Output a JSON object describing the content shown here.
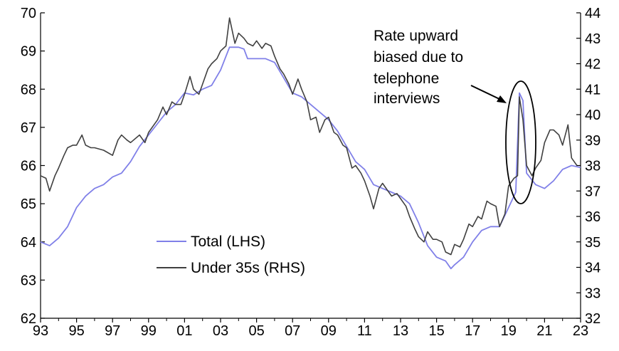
{
  "chart_data": {
    "type": "line",
    "title": "",
    "xlabel": "",
    "ylabel_left": "",
    "ylabel_right": "",
    "x_ticks": [
      "93",
      "95",
      "97",
      "99",
      "01",
      "03",
      "05",
      "07",
      "09",
      "11",
      "13",
      "15",
      "17",
      "19",
      "21",
      "23"
    ],
    "x_tick_years": [
      1993,
      1995,
      1997,
      1999,
      2001,
      2003,
      2005,
      2007,
      2009,
      2011,
      2013,
      2015,
      2017,
      2019,
      2021,
      2023
    ],
    "xlim": [
      1993,
      2023
    ],
    "ylim_left": [
      62,
      70
    ],
    "ylim_right": [
      32,
      44
    ],
    "y_ticks_left": [
      "62",
      "63",
      "64",
      "65",
      "66",
      "67",
      "68",
      "69",
      "70"
    ],
    "y_ticks_right": [
      "32",
      "33",
      "34",
      "35",
      "36",
      "37",
      "38",
      "39",
      "40",
      "41",
      "42",
      "43",
      "44"
    ],
    "grid": false,
    "legend_position": "bottom-left",
    "series": [
      {
        "name": "Total (LHS)",
        "axis": "left",
        "color": "#8080e8",
        "points": [
          [
            1993.0,
            64.0
          ],
          [
            1993.5,
            63.9
          ],
          [
            1994.0,
            64.1
          ],
          [
            1994.5,
            64.4
          ],
          [
            1995.0,
            64.9
          ],
          [
            1995.5,
            65.2
          ],
          [
            1996.0,
            65.4
          ],
          [
            1996.5,
            65.5
          ],
          [
            1997.0,
            65.7
          ],
          [
            1997.5,
            65.8
          ],
          [
            1998.0,
            66.1
          ],
          [
            1998.5,
            66.5
          ],
          [
            1999.0,
            66.8
          ],
          [
            1999.5,
            67.1
          ],
          [
            2000.0,
            67.4
          ],
          [
            2000.5,
            67.6
          ],
          [
            2001.0,
            67.9
          ],
          [
            2001.5,
            67.85
          ],
          [
            2002.0,
            68.0
          ],
          [
            2002.5,
            68.1
          ],
          [
            2003.0,
            68.5
          ],
          [
            2003.5,
            69.1
          ],
          [
            2004.0,
            69.1
          ],
          [
            2004.3,
            69.05
          ],
          [
            2004.5,
            68.8
          ],
          [
            2005.0,
            68.8
          ],
          [
            2005.5,
            68.8
          ],
          [
            2006.0,
            68.7
          ],
          [
            2006.5,
            68.3
          ],
          [
            2007.0,
            67.9
          ],
          [
            2007.5,
            67.8
          ],
          [
            2008.0,
            67.6
          ],
          [
            2008.5,
            67.4
          ],
          [
            2009.0,
            67.2
          ],
          [
            2009.5,
            66.9
          ],
          [
            2010.0,
            66.5
          ],
          [
            2010.5,
            66.1
          ],
          [
            2011.0,
            65.9
          ],
          [
            2011.5,
            65.5
          ],
          [
            2012.0,
            65.4
          ],
          [
            2012.5,
            65.3
          ],
          [
            2013.0,
            65.2
          ],
          [
            2013.5,
            65.0
          ],
          [
            2014.0,
            64.5
          ],
          [
            2014.5,
            63.9
          ],
          [
            2015.0,
            63.6
          ],
          [
            2015.5,
            63.5
          ],
          [
            2015.8,
            63.3
          ],
          [
            2016.0,
            63.4
          ],
          [
            2016.5,
            63.6
          ],
          [
            2017.0,
            64.0
          ],
          [
            2017.5,
            64.3
          ],
          [
            2018.0,
            64.4
          ],
          [
            2018.5,
            64.4
          ],
          [
            2019.0,
            64.9
          ],
          [
            2019.4,
            65.3
          ],
          [
            2019.6,
            67.9
          ],
          [
            2019.8,
            67.7
          ],
          [
            2020.0,
            65.8
          ],
          [
            2020.5,
            65.5
          ],
          [
            2021.0,
            65.4
          ],
          [
            2021.5,
            65.6
          ],
          [
            2022.0,
            65.9
          ],
          [
            2022.5,
            66.0
          ],
          [
            2023.0,
            65.95
          ]
        ]
      },
      {
        "name": "Under 35s (RHS)",
        "axis": "right",
        "color": "#404040",
        "points": [
          [
            1993.0,
            37.6
          ],
          [
            1993.3,
            37.5
          ],
          [
            1993.5,
            37.0
          ],
          [
            1993.8,
            37.6
          ],
          [
            1994.0,
            37.9
          ],
          [
            1994.3,
            38.4
          ],
          [
            1994.5,
            38.7
          ],
          [
            1994.8,
            38.8
          ],
          [
            1995.0,
            38.8
          ],
          [
            1995.3,
            39.2
          ],
          [
            1995.5,
            38.8
          ],
          [
            1995.8,
            38.7
          ],
          [
            1996.0,
            38.7
          ],
          [
            1996.5,
            38.6
          ],
          [
            1997.0,
            38.4
          ],
          [
            1997.3,
            39.0
          ],
          [
            1997.5,
            39.2
          ],
          [
            1997.8,
            39.0
          ],
          [
            1998.0,
            38.9
          ],
          [
            1998.5,
            39.2
          ],
          [
            1998.8,
            38.9
          ],
          [
            1999.0,
            39.3
          ],
          [
            1999.5,
            39.8
          ],
          [
            1999.8,
            40.3
          ],
          [
            2000.0,
            40.0
          ],
          [
            2000.3,
            40.5
          ],
          [
            2000.5,
            40.4
          ],
          [
            2000.8,
            40.4
          ],
          [
            2001.0,
            40.8
          ],
          [
            2001.3,
            41.5
          ],
          [
            2001.5,
            41.0
          ],
          [
            2001.8,
            40.8
          ],
          [
            2002.0,
            41.2
          ],
          [
            2002.3,
            41.8
          ],
          [
            2002.5,
            42.0
          ],
          [
            2002.8,
            42.2
          ],
          [
            2003.0,
            42.5
          ],
          [
            2003.3,
            42.7
          ],
          [
            2003.5,
            43.8
          ],
          [
            2003.8,
            42.8
          ],
          [
            2004.0,
            43.2
          ],
          [
            2004.3,
            43.0
          ],
          [
            2004.5,
            42.8
          ],
          [
            2004.8,
            42.7
          ],
          [
            2005.0,
            42.9
          ],
          [
            2005.3,
            42.6
          ],
          [
            2005.5,
            42.8
          ],
          [
            2005.8,
            42.7
          ],
          [
            2006.0,
            42.3
          ],
          [
            2006.3,
            41.8
          ],
          [
            2006.5,
            41.6
          ],
          [
            2006.8,
            41.2
          ],
          [
            2007.0,
            40.8
          ],
          [
            2007.3,
            41.4
          ],
          [
            2007.5,
            41.0
          ],
          [
            2007.8,
            40.5
          ],
          [
            2008.0,
            39.8
          ],
          [
            2008.3,
            39.9
          ],
          [
            2008.5,
            39.3
          ],
          [
            2008.8,
            39.8
          ],
          [
            2009.0,
            39.9
          ],
          [
            2009.3,
            39.3
          ],
          [
            2009.5,
            39.2
          ],
          [
            2009.8,
            38.8
          ],
          [
            2010.0,
            38.7
          ],
          [
            2010.3,
            37.9
          ],
          [
            2010.5,
            38.0
          ],
          [
            2010.8,
            37.7
          ],
          [
            2011.0,
            37.4
          ],
          [
            2011.3,
            36.8
          ],
          [
            2011.5,
            36.3
          ],
          [
            2011.8,
            37.1
          ],
          [
            2012.0,
            37.3
          ],
          [
            2012.3,
            37.0
          ],
          [
            2012.5,
            36.8
          ],
          [
            2012.8,
            36.9
          ],
          [
            2013.0,
            36.7
          ],
          [
            2013.3,
            36.4
          ],
          [
            2013.5,
            36.0
          ],
          [
            2013.8,
            35.5
          ],
          [
            2014.0,
            35.2
          ],
          [
            2014.3,
            35.0
          ],
          [
            2014.5,
            35.4
          ],
          [
            2014.8,
            35.1
          ],
          [
            2015.0,
            35.1
          ],
          [
            2015.3,
            35.0
          ],
          [
            2015.5,
            34.6
          ],
          [
            2015.8,
            34.5
          ],
          [
            2016.0,
            34.9
          ],
          [
            2016.3,
            34.8
          ],
          [
            2016.5,
            35.1
          ],
          [
            2016.8,
            35.7
          ],
          [
            2017.0,
            35.6
          ],
          [
            2017.3,
            36.0
          ],
          [
            2017.5,
            35.9
          ],
          [
            2017.8,
            36.6
          ],
          [
            2018.0,
            36.5
          ],
          [
            2018.3,
            36.4
          ],
          [
            2018.5,
            35.6
          ],
          [
            2018.8,
            36.1
          ],
          [
            2019.0,
            37.2
          ],
          [
            2019.3,
            37.5
          ],
          [
            2019.5,
            37.6
          ],
          [
            2019.6,
            40.7
          ],
          [
            2019.8,
            39.8
          ],
          [
            2020.0,
            38.0
          ],
          [
            2020.3,
            37.6
          ],
          [
            2020.5,
            37.9
          ],
          [
            2020.8,
            38.2
          ],
          [
            2021.0,
            38.9
          ],
          [
            2021.3,
            39.4
          ],
          [
            2021.5,
            39.4
          ],
          [
            2021.8,
            39.2
          ],
          [
            2022.0,
            38.8
          ],
          [
            2022.3,
            39.6
          ],
          [
            2022.5,
            38.3
          ],
          [
            2022.8,
            38.0
          ]
        ]
      }
    ],
    "annotations": [
      {
        "lines": [
          "Rate upward",
          "biased due to",
          "telephone",
          "interviews"
        ]
      }
    ]
  },
  "legend": {
    "items": [
      {
        "label": "Total (LHS)",
        "color": "#8080e8"
      },
      {
        "label": "Under 35s (RHS)",
        "color": "#404040"
      }
    ]
  }
}
